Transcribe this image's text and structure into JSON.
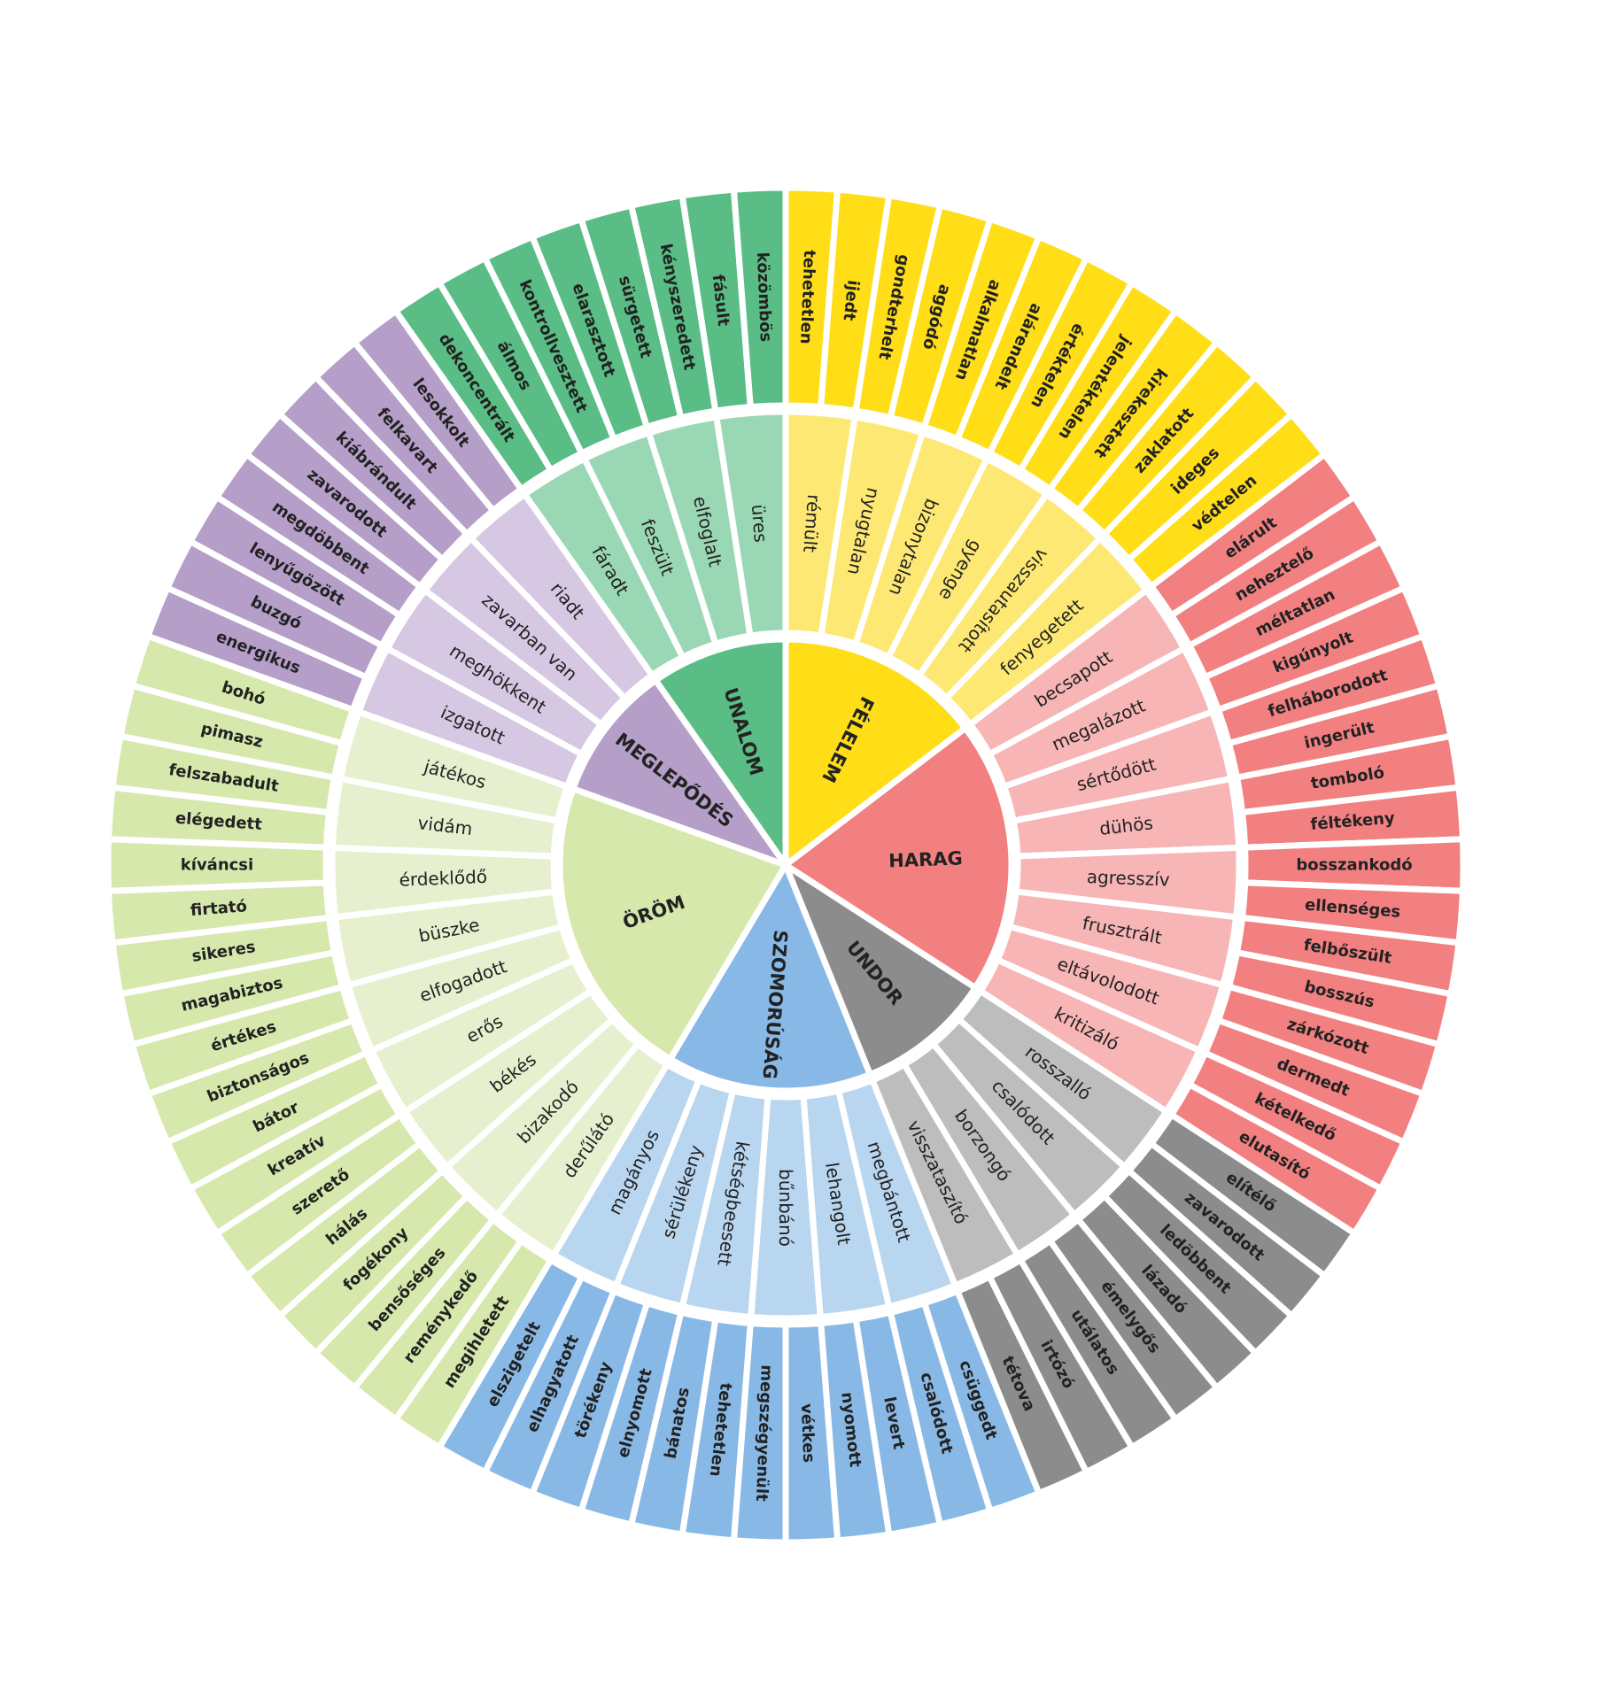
{
  "wheel": {
    "groups": [
      {
        "name": "FÉLELEM",
        "color": "#ffdd17",
        "light": "#fde873",
        "middle": [
          {
            "label": "rémült",
            "outer": [
              "tehetetlen",
              "ijedt"
            ]
          },
          {
            "label": "nyugtalan",
            "outer": [
              "gondterhelt",
              "aggódó"
            ]
          },
          {
            "label": "bizonytalan",
            "outer": [
              "alkalmatlan",
              "alárendelt"
            ]
          },
          {
            "label": "gyenge",
            "outer": [
              "értéktelen",
              "jelentéktelen"
            ]
          },
          {
            "label": "visszautasított",
            "outer": [
              "kirekesztett",
              "zaklatott"
            ]
          },
          {
            "label": "fenyegetett",
            "outer": [
              "ideges",
              "védtelen"
            ]
          }
        ]
      },
      {
        "name": "HARAG",
        "color": "#f28080",
        "light": "#f7b5b5",
        "middle": [
          {
            "label": "becsapott",
            "outer": [
              "elárult",
              "neheztelő"
            ]
          },
          {
            "label": "megalázott",
            "outer": [
              "méltatlan",
              "kigúnyolt"
            ]
          },
          {
            "label": "sértődött",
            "outer": [
              "felháborodott",
              "ingerült"
            ]
          },
          {
            "label": "dühös",
            "outer": [
              "tomboló",
              "féltékeny"
            ]
          },
          {
            "label": "agresszív",
            "outer": [
              "bosszankodó",
              "ellenséges"
            ]
          },
          {
            "label": "frusztrált",
            "outer": [
              "felbőszült",
              "bosszús"
            ]
          },
          {
            "label": "eltávolodott",
            "outer": [
              "zárkózott",
              "dermedt"
            ]
          },
          {
            "label": "kritizáló",
            "outer": [
              "kételkedő",
              "elutasító"
            ]
          }
        ]
      },
      {
        "name": "UNDOR",
        "color": "#8c8c8c",
        "light": "#bdbdbd",
        "middle": [
          {
            "label": "rosszalló",
            "outer": [
              "elítélő",
              "zavarodott"
            ]
          },
          {
            "label": "csalódott",
            "outer": [
              "ledöbbent",
              "lázadó"
            ]
          },
          {
            "label": "borzongó",
            "outer": [
              "émelygős",
              "utálatos"
            ]
          },
          {
            "label": "visszataszító",
            "outer": [
              "irtózó",
              "tétova"
            ]
          }
        ]
      },
      {
        "name": "SZOMORÚSÁG",
        "color": "#88b9e6",
        "light": "#b9d6f0",
        "middle": [
          {
            "label": "megbántott",
            "outer": [
              "csüggedt",
              "csalódott"
            ]
          },
          {
            "label": "lehangolt",
            "outer": [
              "levert",
              "nyomott"
            ]
          },
          {
            "label": "bűnbánó",
            "outer": [
              "vétkes",
              "megszégyenült"
            ]
          },
          {
            "label": "kétségbeesett",
            "outer": [
              "tehetetlen",
              "bánatos"
            ]
          },
          {
            "label": "sérülékeny",
            "outer": [
              "elnyomott",
              "törékeny"
            ]
          },
          {
            "label": "magányos",
            "outer": [
              "elhagyatott",
              "elszigetelt"
            ]
          }
        ]
      },
      {
        "name": "ÖRÖM",
        "color": "#d6e8ac",
        "light": "#e6f0cf",
        "middle": [
          {
            "label": "derűlátó",
            "outer": [
              "megihletett",
              "reménykedő"
            ]
          },
          {
            "label": "bizakodó",
            "outer": [
              "bensőséges",
              "fogékony"
            ]
          },
          {
            "label": "békés",
            "outer": [
              "hálás",
              "szerető"
            ]
          },
          {
            "label": "erős",
            "outer": [
              "kreatív",
              "bátor"
            ]
          },
          {
            "label": "elfogadott",
            "outer": [
              "biztonságos",
              "értékes"
            ]
          },
          {
            "label": "büszke",
            "outer": [
              "magabiztos",
              "sikeres"
            ]
          },
          {
            "label": "érdeklődő",
            "outer": [
              "firtató",
              "kíváncsi"
            ]
          },
          {
            "label": "vidám",
            "outer": [
              "elégedett",
              "felszabadult"
            ]
          },
          {
            "label": "játékos",
            "outer": [
              "pimasz",
              "bohó"
            ]
          }
        ]
      },
      {
        "name": "MEGLEPŐDÉS",
        "color": "#b59fc9",
        "light": "#d6c8e2",
        "middle": [
          {
            "label": "izgatott",
            "outer": [
              "energikus",
              "buzgó"
            ]
          },
          {
            "label": "meghökkent",
            "outer": [
              "lenyűgözött",
              "megdöbbent"
            ]
          },
          {
            "label": "zavarban van",
            "outer": [
              "zavarodott",
              "kiábrándult"
            ]
          },
          {
            "label": "riadt",
            "outer": [
              "felkavart",
              "lesokkolt"
            ]
          }
        ]
      },
      {
        "name": "UNALOM",
        "color": "#59bd85",
        "light": "#9ad8b5",
        "middle": [
          {
            "label": "fáradt",
            "outer": [
              "dekoncentrált",
              "álmos"
            ]
          },
          {
            "label": "feszült",
            "outer": [
              "kontrollvesztett",
              "elarasztott"
            ]
          },
          {
            "label": "elfoglalt",
            "outer": [
              "sürgetett",
              "kényszeredett"
            ]
          },
          {
            "label": "üres",
            "outer": [
              "fásult",
              "közömbös"
            ]
          }
        ]
      }
    ]
  }
}
